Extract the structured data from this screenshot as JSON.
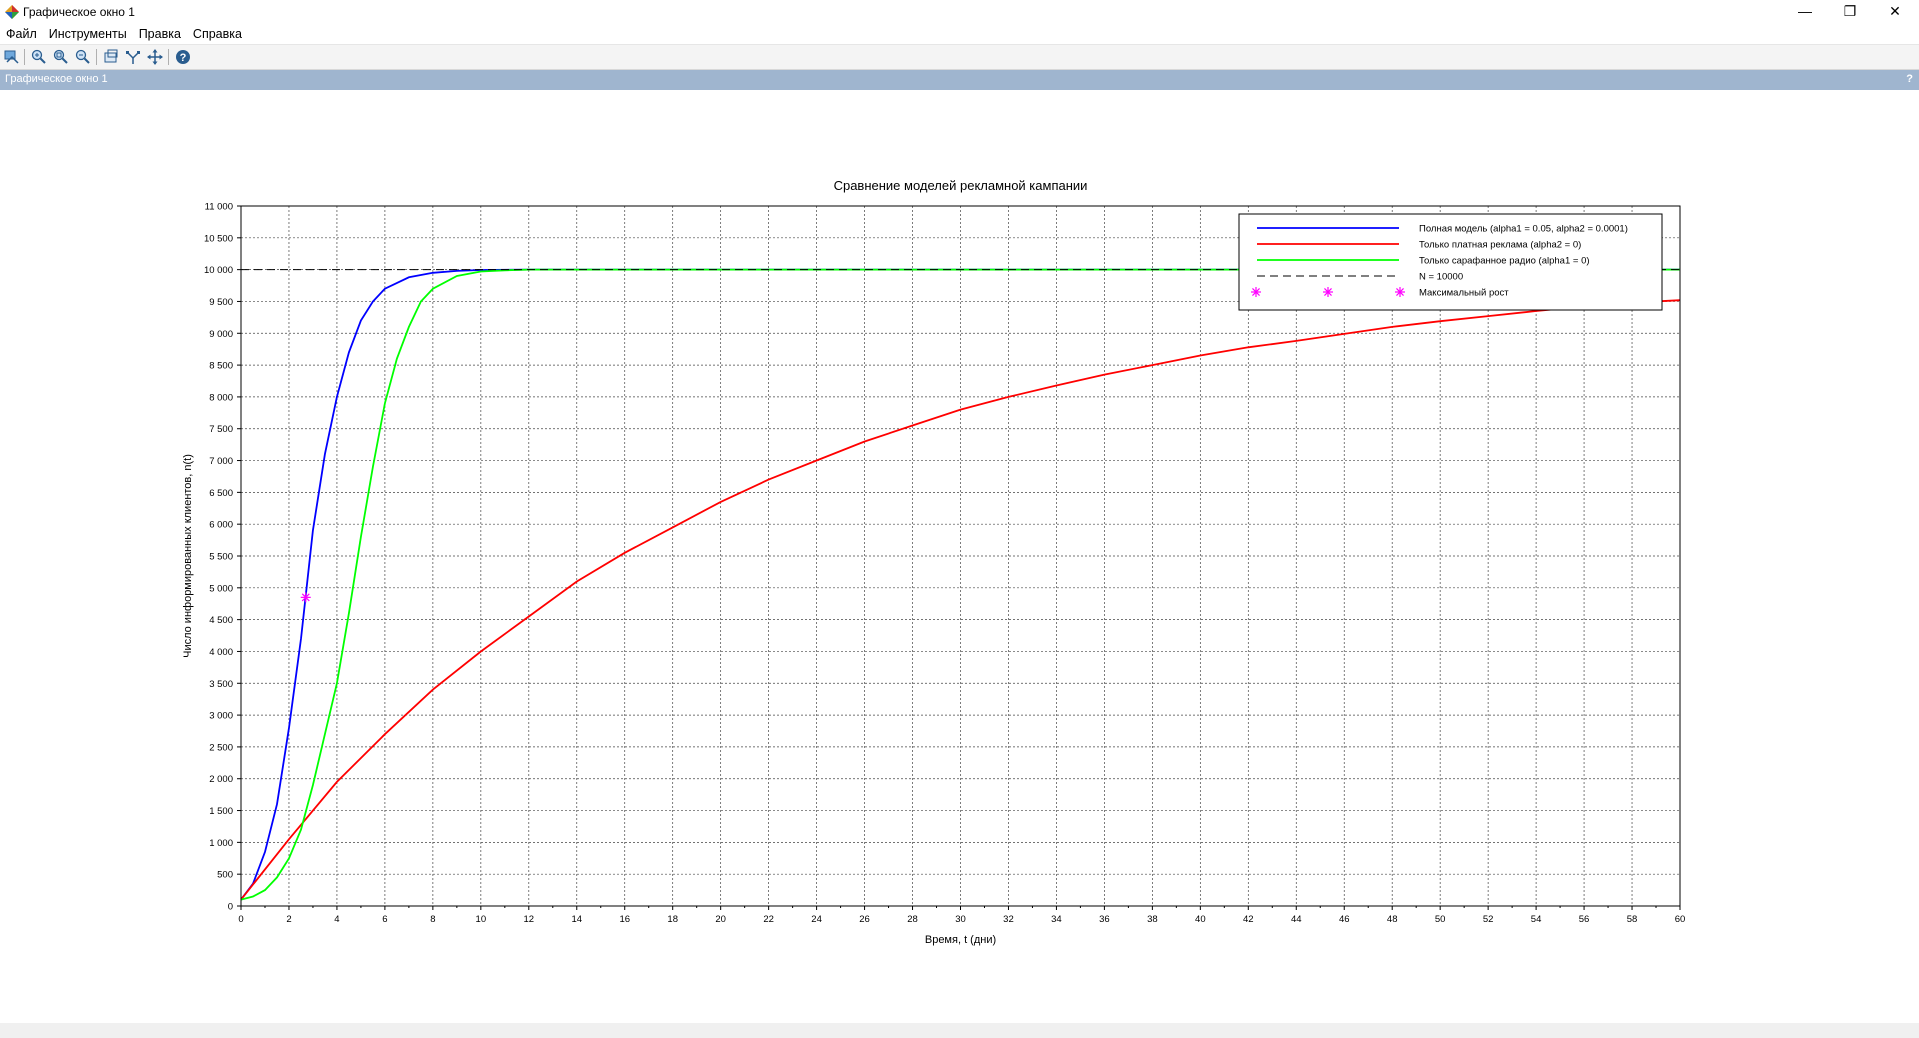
{
  "window": {
    "title": "Графическое окно 1",
    "controls": {
      "minimize": "—",
      "restore": "❐",
      "close": "✕"
    }
  },
  "menu": [
    "Файл",
    "Инструменты",
    "Правка",
    "Справка"
  ],
  "toolbar": {
    "buttons": [
      {
        "name": "datatip-icon"
      },
      {
        "name": "zoom-in-icon"
      },
      {
        "name": "zoom-area-icon"
      },
      {
        "name": "zoom-out-icon"
      },
      {
        "name": "rotate-icon"
      },
      {
        "name": "edit-curve-icon"
      },
      {
        "name": "pan-icon"
      },
      {
        "name": "help-icon"
      }
    ]
  },
  "panel": {
    "title": "Графическое окно 1",
    "help": "?"
  },
  "colors": {
    "full_model": "#0000ff",
    "paid_only": "#ff0000",
    "word_of_mouth": "#00ff00",
    "n_line": "#000000",
    "marker": "#ff00ff",
    "panel": "#9fb5cf"
  },
  "chart_data": {
    "type": "line",
    "title": "Сравнение моделей рекламной кампании",
    "xlabel": "Время, t (дни)",
    "ylabel": "Число информированных клиентов, n(t)",
    "xlim": [
      0,
      60
    ],
    "ylim": [
      0,
      11000
    ],
    "grid": true,
    "legend_position": "top-right",
    "x_ticks": [
      0,
      2,
      4,
      6,
      8,
      10,
      12,
      14,
      16,
      18,
      20,
      22,
      24,
      26,
      28,
      30,
      32,
      34,
      36,
      38,
      40,
      42,
      44,
      46,
      48,
      50,
      52,
      54,
      56,
      58,
      60
    ],
    "x_tick_labels": [
      "0",
      "2",
      "4",
      "6",
      "8",
      "10",
      "12",
      "14",
      "16",
      "18",
      "20",
      "22",
      "24",
      "26",
      "28",
      "30",
      "32",
      "34",
      "36",
      "38",
      "40",
      "42",
      "44",
      "46",
      "48",
      "50",
      "52",
      "54",
      "56",
      "58",
      "60"
    ],
    "y_ticks": [
      0,
      500,
      1000,
      1500,
      2000,
      2500,
      3000,
      3500,
      4000,
      4500,
      5000,
      5500,
      6000,
      6500,
      7000,
      7500,
      8000,
      8500,
      9000,
      9500,
      10000,
      10500,
      11000
    ],
    "y_tick_labels": [
      "0",
      "500",
      "1 000",
      "1 500",
      "2 000",
      "2 500",
      "3 000",
      "3 500",
      "4 000",
      "4 500",
      "5 000",
      "5 500",
      "6 000",
      "6 500",
      "7 000",
      "7 500",
      "8 000",
      "8 500",
      "9 000",
      "9 500",
      "10 000",
      "10 500",
      "11 000"
    ],
    "series": [
      {
        "name": "Полная модель (alpha1 = 0.05, alpha2 = 0.0001)",
        "color": "#0000ff",
        "style": "solid",
        "x": [
          0,
          0.5,
          1,
          1.5,
          2,
          2.5,
          3,
          3.5,
          4,
          4.5,
          5,
          5.5,
          6,
          7,
          8,
          9,
          10,
          12,
          60
        ],
        "y": [
          100,
          350,
          850,
          1600,
          2800,
          4200,
          5900,
          7100,
          8000,
          8700,
          9200,
          9500,
          9700,
          9880,
          9950,
          9980,
          9995,
          10000,
          10000
        ]
      },
      {
        "name": "Только платная реклама (alpha2 = 0)",
        "color": "#ff0000",
        "style": "solid",
        "x": [
          0,
          2,
          4,
          6,
          8,
          10,
          12,
          14,
          16,
          18,
          20,
          22,
          24,
          26,
          28,
          30,
          32,
          34,
          36,
          38,
          40,
          42,
          44,
          46,
          48,
          50,
          52,
          54,
          56,
          58,
          60
        ],
        "y": [
          100,
          1050,
          1950,
          2700,
          3400,
          4000,
          4550,
          5100,
          5550,
          5950,
          6350,
          6700,
          7000,
          7300,
          7550,
          7800,
          8000,
          8180,
          8350,
          8500,
          8650,
          8780,
          8880,
          8990,
          9100,
          9190,
          9270,
          9350,
          9420,
          9480,
          9520
        ]
      },
      {
        "name": "Только сарафанное радио (alpha1 = 0)",
        "color": "#00ff00",
        "style": "solid",
        "x": [
          0,
          0.5,
          1,
          1.5,
          2,
          2.5,
          3,
          3.5,
          4,
          4.5,
          5,
          5.5,
          6,
          6.5,
          7,
          7.5,
          8,
          9,
          10,
          11,
          12,
          60
        ],
        "y": [
          100,
          150,
          250,
          450,
          750,
          1200,
          1900,
          2700,
          3500,
          4600,
          5800,
          6900,
          7900,
          8600,
          9100,
          9500,
          9700,
          9900,
          9970,
          9990,
          10000,
          10000
        ]
      },
      {
        "name": "N = 10000",
        "color": "#000000",
        "style": "dashed",
        "x": [
          0,
          60
        ],
        "y": [
          10000,
          10000
        ]
      }
    ],
    "markers": [
      {
        "name": "Максимальный рост",
        "color": "#ff00ff",
        "symbol": "asterisk",
        "x": 2.7,
        "y": 4850
      }
    ]
  }
}
